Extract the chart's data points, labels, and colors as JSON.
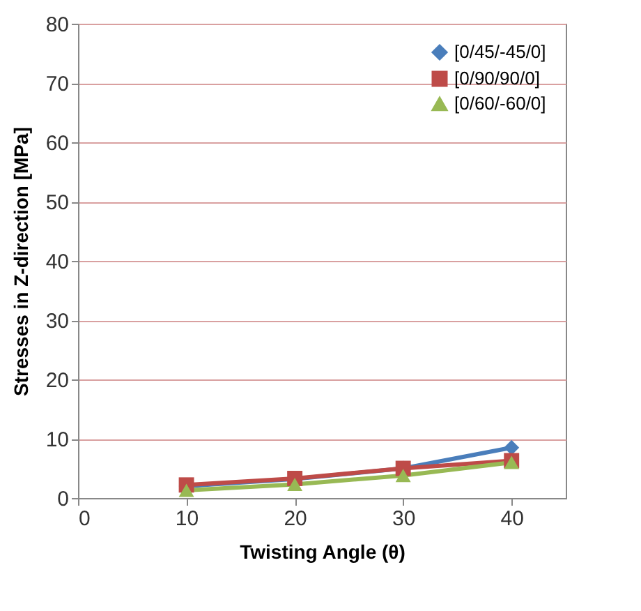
{
  "chart_data": {
    "type": "line",
    "xlabel": "Twisting Angle (θ)",
    "ylabel": "Stresses  in Z-direction  [MPa]",
    "x": [
      10,
      20,
      30,
      40
    ],
    "series": [
      {
        "name": "[0/45/-45/0]",
        "color": "#4a7ebb",
        "marker": "diamond",
        "values": [
          2,
          3.2,
          5,
          8.5
        ]
      },
      {
        "name": "[0/90/90/0]",
        "color": "#be4b48",
        "marker": "square",
        "values": [
          2.2,
          3.3,
          5,
          6.3
        ]
      },
      {
        "name": "[0/60/-60/0]",
        "color": "#98b954",
        "marker": "triangle",
        "values": [
          1.3,
          2.3,
          3.8,
          6
        ]
      }
    ],
    "xlim": [
      0,
      45
    ],
    "xticks": [
      0,
      10,
      20,
      30,
      40
    ],
    "ylim": [
      0,
      80
    ],
    "yticks": [
      0,
      10,
      20,
      30,
      40,
      50,
      60,
      70,
      80
    ],
    "grid": "y",
    "legend": "top right"
  }
}
